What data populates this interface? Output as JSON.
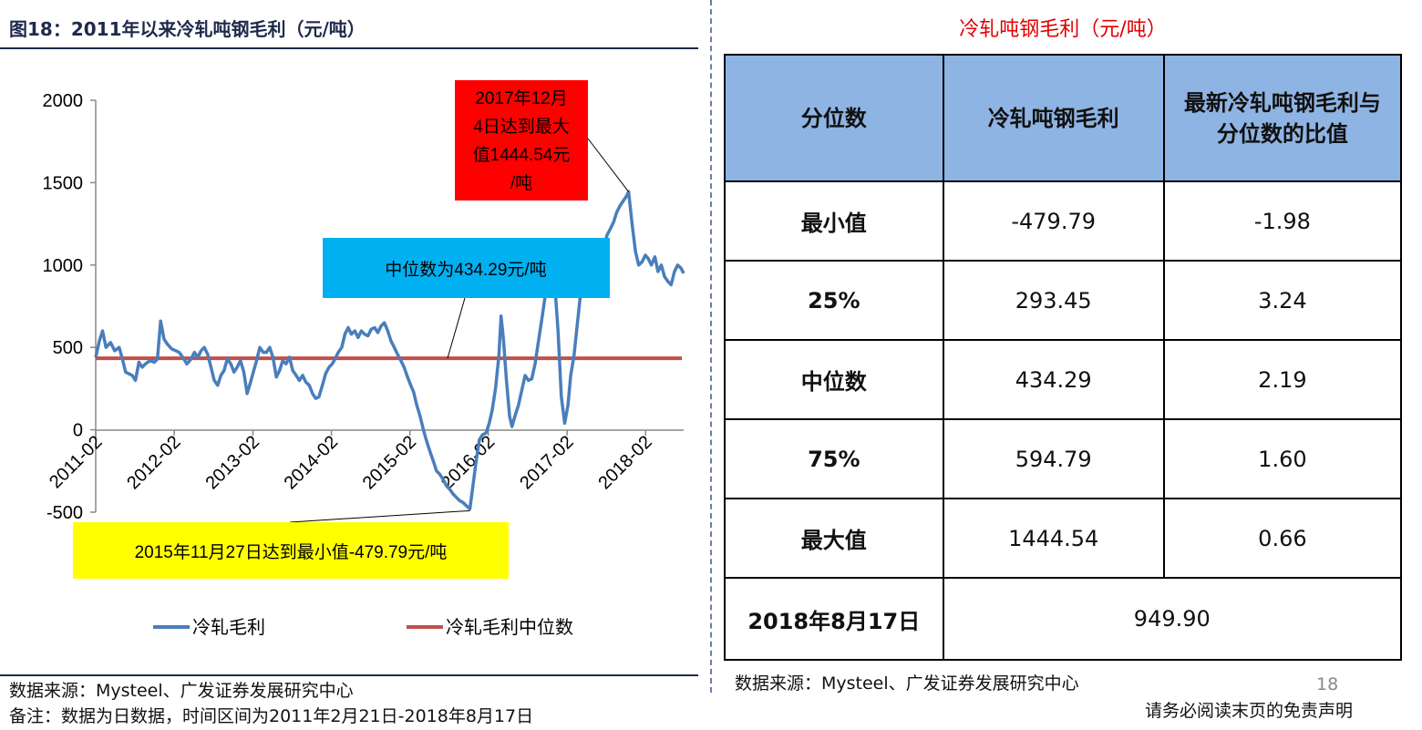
{
  "figure": {
    "title": "图18：2011年以来冷轧吨钢毛利（元/吨）"
  },
  "chart_data": {
    "type": "line",
    "title": "",
    "xlabel": "",
    "ylabel": "",
    "ylim": [
      -500,
      2000
    ],
    "yticks": [
      -500,
      0,
      500,
      1000,
      1500,
      2000
    ],
    "ytick_labels": [
      "-500",
      "0",
      "500",
      "1000",
      "1500",
      "2000"
    ],
    "xticks": [
      "2011-02",
      "2012-02",
      "2013-02",
      "2014-02",
      "2015-02",
      "2016-02",
      "2017-02",
      "2018-02"
    ],
    "xlim": [
      "2011-02-21",
      "2018-08-17"
    ],
    "legend_position": "bottom",
    "grid": false,
    "series": [
      {
        "name": "冷轧毛利",
        "color": "#4a7ebb",
        "points": [
          [
            "2011-02-21",
            440
          ],
          [
            "2011-03-10",
            540
          ],
          [
            "2011-03-25",
            600
          ],
          [
            "2011-04-10",
            500
          ],
          [
            "2011-05-01",
            530
          ],
          [
            "2011-05-20",
            480
          ],
          [
            "2011-06-10",
            500
          ],
          [
            "2011-06-25",
            430
          ],
          [
            "2011-07-10",
            350
          ],
          [
            "2011-07-25",
            340
          ],
          [
            "2011-08-10",
            330
          ],
          [
            "2011-08-25",
            300
          ],
          [
            "2011-09-10",
            410
          ],
          [
            "2011-09-25",
            380
          ],
          [
            "2011-10-10",
            400
          ],
          [
            "2011-11-01",
            420
          ],
          [
            "2011-11-20",
            410
          ],
          [
            "2011-12-05",
            430
          ],
          [
            "2011-12-20",
            660
          ],
          [
            "2012-01-05",
            550
          ],
          [
            "2012-01-20",
            520
          ],
          [
            "2012-02-10",
            490
          ],
          [
            "2012-02-28",
            480
          ],
          [
            "2012-03-15",
            470
          ],
          [
            "2012-04-01",
            440
          ],
          [
            "2012-04-20",
            400
          ],
          [
            "2012-05-10",
            430
          ],
          [
            "2012-05-25",
            470
          ],
          [
            "2012-06-10",
            440
          ],
          [
            "2012-06-25",
            480
          ],
          [
            "2012-07-10",
            500
          ],
          [
            "2012-07-25",
            460
          ],
          [
            "2012-08-10",
            380
          ],
          [
            "2012-08-25",
            300
          ],
          [
            "2012-09-10",
            270
          ],
          [
            "2012-09-25",
            330
          ],
          [
            "2012-10-10",
            360
          ],
          [
            "2012-10-25",
            430
          ],
          [
            "2012-11-10",
            400
          ],
          [
            "2012-11-25",
            350
          ],
          [
            "2012-12-10",
            380
          ],
          [
            "2012-12-25",
            420
          ],
          [
            "2013-01-10",
            350
          ],
          [
            "2013-01-25",
            220
          ],
          [
            "2013-02-10",
            290
          ],
          [
            "2013-02-25",
            360
          ],
          [
            "2013-03-10",
            420
          ],
          [
            "2013-03-25",
            500
          ],
          [
            "2013-04-10",
            470
          ],
          [
            "2013-04-25",
            470
          ],
          [
            "2013-05-10",
            500
          ],
          [
            "2013-05-25",
            440
          ],
          [
            "2013-06-10",
            320
          ],
          [
            "2013-06-25",
            360
          ],
          [
            "2013-07-10",
            420
          ],
          [
            "2013-07-25",
            400
          ],
          [
            "2013-08-10",
            440
          ],
          [
            "2013-08-25",
            360
          ],
          [
            "2013-09-10",
            330
          ],
          [
            "2013-09-25",
            300
          ],
          [
            "2013-10-10",
            330
          ],
          [
            "2013-10-25",
            290
          ],
          [
            "2013-11-10",
            270
          ],
          [
            "2013-11-25",
            220
          ],
          [
            "2013-12-10",
            190
          ],
          [
            "2013-12-25",
            200
          ],
          [
            "2014-01-10",
            270
          ],
          [
            "2014-01-25",
            340
          ],
          [
            "2014-02-10",
            380
          ],
          [
            "2014-02-25",
            400
          ],
          [
            "2014-03-10",
            430
          ],
          [
            "2014-03-25",
            470
          ],
          [
            "2014-04-10",
            500
          ],
          [
            "2014-04-25",
            580
          ],
          [
            "2014-05-10",
            620
          ],
          [
            "2014-05-25",
            580
          ],
          [
            "2014-06-10",
            600
          ],
          [
            "2014-06-25",
            560
          ],
          [
            "2014-07-10",
            600
          ],
          [
            "2014-07-25",
            580
          ],
          [
            "2014-08-10",
            570
          ],
          [
            "2014-08-25",
            610
          ],
          [
            "2014-09-10",
            620
          ],
          [
            "2014-09-25",
            590
          ],
          [
            "2014-10-10",
            630
          ],
          [
            "2014-10-25",
            650
          ],
          [
            "2014-11-10",
            600
          ],
          [
            "2014-11-25",
            540
          ],
          [
            "2014-12-10",
            500
          ],
          [
            "2014-12-25",
            460
          ],
          [
            "2015-01-10",
            420
          ],
          [
            "2015-01-25",
            380
          ],
          [
            "2015-02-10",
            320
          ],
          [
            "2015-02-25",
            270
          ],
          [
            "2015-03-10",
            230
          ],
          [
            "2015-03-25",
            150
          ],
          [
            "2015-04-10",
            80
          ],
          [
            "2015-04-25",
            0
          ],
          [
            "2015-05-10",
            -70
          ],
          [
            "2015-05-25",
            -130
          ],
          [
            "2015-06-10",
            -190
          ],
          [
            "2015-06-25",
            -250
          ],
          [
            "2015-07-10",
            -270
          ],
          [
            "2015-07-25",
            -300
          ],
          [
            "2015-08-10",
            -340
          ],
          [
            "2015-08-25",
            -360
          ],
          [
            "2015-09-10",
            -390
          ],
          [
            "2015-09-25",
            -410
          ],
          [
            "2015-10-10",
            -430
          ],
          [
            "2015-10-25",
            -440
          ],
          [
            "2015-11-10",
            -460
          ],
          [
            "2015-11-27",
            -480
          ],
          [
            "2015-12-10",
            -350
          ],
          [
            "2015-12-25",
            -200
          ],
          [
            "2016-01-10",
            -60
          ],
          [
            "2016-01-25",
            -30
          ],
          [
            "2016-02-10",
            -20
          ],
          [
            "2016-02-25",
            40
          ],
          [
            "2016-03-10",
            120
          ],
          [
            "2016-03-25",
            250
          ],
          [
            "2016-04-10",
            450
          ],
          [
            "2016-04-20",
            690
          ],
          [
            "2016-05-01",
            550
          ],
          [
            "2016-05-15",
            300
          ],
          [
            "2016-05-30",
            80
          ],
          [
            "2016-06-10",
            20
          ],
          [
            "2016-06-25",
            90
          ],
          [
            "2016-07-10",
            150
          ],
          [
            "2016-07-25",
            240
          ],
          [
            "2016-08-10",
            330
          ],
          [
            "2016-08-25",
            300
          ],
          [
            "2016-09-10",
            310
          ],
          [
            "2016-09-25",
            400
          ],
          [
            "2016-10-10",
            530
          ],
          [
            "2016-10-25",
            660
          ],
          [
            "2016-11-10",
            800
          ],
          [
            "2016-11-25",
            1050
          ],
          [
            "2016-12-10",
            1120
          ],
          [
            "2016-12-25",
            900
          ],
          [
            "2017-01-10",
            600
          ],
          [
            "2017-01-25",
            200
          ],
          [
            "2017-02-10",
            40
          ],
          [
            "2017-02-25",
            150
          ],
          [
            "2017-03-10",
            330
          ],
          [
            "2017-03-25",
            450
          ],
          [
            "2017-04-10",
            650
          ],
          [
            "2017-04-25",
            830
          ],
          [
            "2017-05-10",
            950
          ],
          [
            "2017-05-25",
            900
          ],
          [
            "2017-06-10",
            1020
          ],
          [
            "2017-06-25",
            850
          ],
          [
            "2017-07-10",
            1000
          ],
          [
            "2017-07-25",
            1050
          ],
          [
            "2017-08-10",
            1100
          ],
          [
            "2017-08-25",
            1180
          ],
          [
            "2017-09-10",
            1220
          ],
          [
            "2017-09-25",
            1260
          ],
          [
            "2017-10-10",
            1320
          ],
          [
            "2017-10-25",
            1360
          ],
          [
            "2017-11-10",
            1390
          ],
          [
            "2017-11-25",
            1420
          ],
          [
            "2017-12-04",
            1444.54
          ],
          [
            "2017-12-20",
            1250
          ],
          [
            "2018-01-05",
            1080
          ],
          [
            "2018-01-20",
            1000
          ],
          [
            "2018-02-05",
            1020
          ],
          [
            "2018-02-20",
            1060
          ],
          [
            "2018-03-05",
            1040
          ],
          [
            "2018-03-20",
            1000
          ],
          [
            "2018-04-05",
            1050
          ],
          [
            "2018-04-20",
            960
          ],
          [
            "2018-05-05",
            1000
          ],
          [
            "2018-05-20",
            930
          ],
          [
            "2018-06-05",
            900
          ],
          [
            "2018-06-20",
            880
          ],
          [
            "2018-07-05",
            960
          ],
          [
            "2018-07-20",
            1000
          ],
          [
            "2018-08-05",
            980
          ],
          [
            "2018-08-17",
            949.9
          ]
        ]
      },
      {
        "name": "冷轧毛利中位数",
        "color": "#c0504d",
        "constant": 434.29
      }
    ],
    "annotations": [
      {
        "text": [
          "2017年12月",
          "4日达到最大",
          "值1444.54元",
          "/吨"
        ],
        "background": "#ff0000",
        "target": [
          "2017-12-04",
          1444.54
        ]
      },
      {
        "text": [
          "中位数为434.29元/吨"
        ],
        "background": "#00b0f0",
        "target": [
          "2015-03-01",
          434.29
        ]
      },
      {
        "text": [
          "2015年11月27日达到最小值-479.79元/吨"
        ],
        "background": "#ffff00",
        "target": [
          "2015-11-27",
          -479.79
        ]
      }
    ]
  },
  "footer": {
    "source": "数据来源：Mysteel、广发证券发展研究中心",
    "note": "备注：数据为日数据，时间区间为2011年2月21日-2018年8月17日"
  },
  "table": {
    "title": "冷轧吨钢毛利（元/吨）",
    "headers": [
      "分位数",
      "冷轧吨钢毛利",
      "最新冷轧吨钢毛利与分位数的比值"
    ],
    "rows": [
      {
        "label": "最小值",
        "value": "-479.79",
        "ratio": "-1.98"
      },
      {
        "label": "25%",
        "value": "293.45",
        "ratio": "3.24"
      },
      {
        "label": "中位数",
        "value": "434.29",
        "ratio": "2.19"
      },
      {
        "label": "75%",
        "value": "594.79",
        "ratio": "1.60"
      },
      {
        "label": "最大值",
        "value": "1444.54",
        "ratio": "0.66"
      }
    ],
    "latest": {
      "label": "2018年8月17日",
      "value": "949.90"
    },
    "source": "数据来源：Mysteel、广发证券发展研究中心"
  },
  "page": {
    "number": "18",
    "disclaimer": "请务必阅读末页的免责声明"
  }
}
